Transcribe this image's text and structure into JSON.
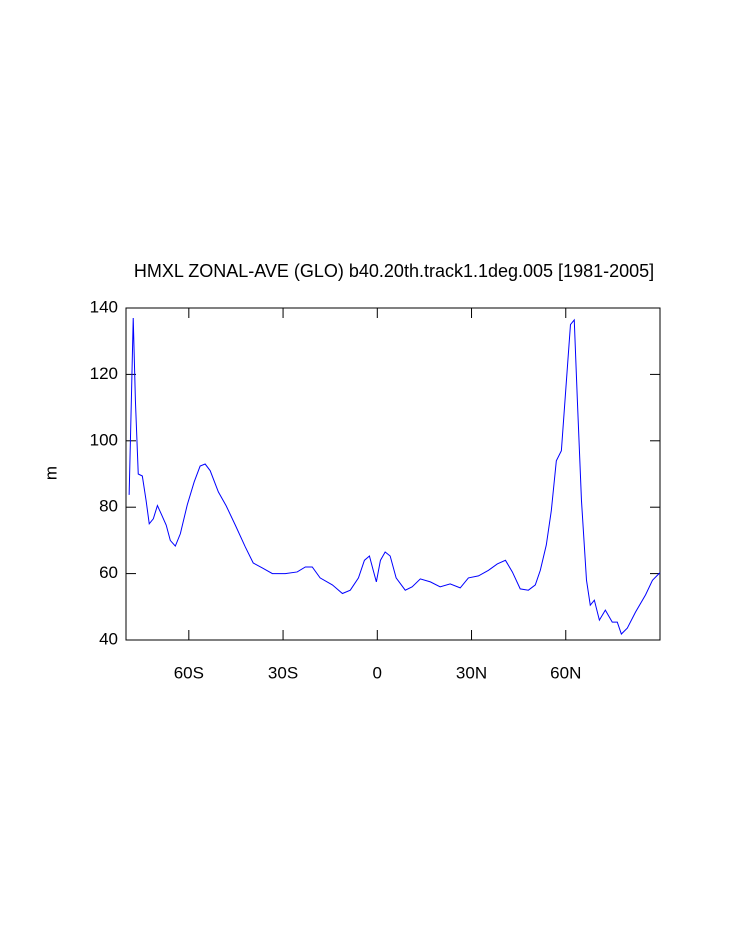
{
  "chart_data": {
    "type": "line",
    "title": "HMXL ZONAL-AVE (GLO) b40.20th.track1.1deg.005 [1981-2005]",
    "ylabel": "m",
    "xlim": [
      -80,
      90
    ],
    "xticks": [
      {
        "value": -60,
        "label": "60S"
      },
      {
        "value": -30,
        "label": "30S"
      },
      0,
      {
        "value": 30,
        "label": "30N"
      },
      {
        "value": 60,
        "label": "60N"
      }
    ],
    "ylim": [
      40,
      140
    ],
    "yticks": [
      40,
      60,
      80,
      100,
      120,
      140
    ],
    "series": [
      {
        "color": "#0000ff",
        "x": [
          -79,
          -78.3,
          -77.7,
          -77,
          -76.1,
          -74.8,
          -73.6,
          -72.6,
          -71.3,
          -70,
          -68.8,
          -67.2,
          -65.9,
          -64.3,
          -62.7,
          -60.5,
          -58.3,
          -56.4,
          -54.8,
          -53.2,
          -50.6,
          -48.1,
          -45.2,
          -42,
          -39.5,
          -36.6,
          -33.4,
          -29.3,
          -25.5,
          -22.9,
          -20.7,
          -18.2,
          -14.3,
          -11.1,
          -8.6,
          -6,
          -4.1,
          -2.5,
          -1.3,
          -0.3,
          1,
          2.5,
          4.1,
          6,
          8.9,
          11.1,
          13.7,
          16.9,
          20,
          23.2,
          26.4,
          29,
          32.2,
          35.4,
          38.2,
          40.8,
          43,
          45.5,
          48.1,
          50.3,
          51.9,
          53.8,
          55.4,
          57,
          58.6,
          60.2,
          61.5,
          62.7,
          63.7,
          65,
          66.6,
          67.8,
          69.1,
          70.7,
          72.6,
          74.8,
          76.4,
          77.7,
          79.6,
          82.2,
          85.4,
          87.6,
          90
        ],
        "values": [
          83.7,
          112,
          137,
          112,
          90,
          89.4,
          82,
          75,
          76.5,
          80.5,
          78,
          74.6,
          70,
          68.3,
          72,
          80.7,
          87.6,
          92.4,
          93,
          91,
          84.6,
          80.4,
          74.6,
          68,
          63.2,
          61.7,
          60,
          60,
          60.5,
          62,
          62,
          58.7,
          56.6,
          54,
          55,
          58.7,
          64,
          65.3,
          61,
          57.5,
          64,
          66.5,
          65.3,
          58.7,
          55,
          56,
          58.4,
          57.5,
          56,
          56.9,
          55.7,
          58.7,
          59.3,
          61,
          62.9,
          64,
          60.5,
          55.4,
          55,
          56.6,
          61,
          68.6,
          79,
          94,
          97,
          118,
          135,
          136.4,
          112,
          82,
          58,
          50.5,
          52,
          46,
          49,
          45.4,
          45.4,
          41.8,
          43.6,
          48.4,
          53.6,
          58,
          60.3
        ]
      }
    ]
  }
}
